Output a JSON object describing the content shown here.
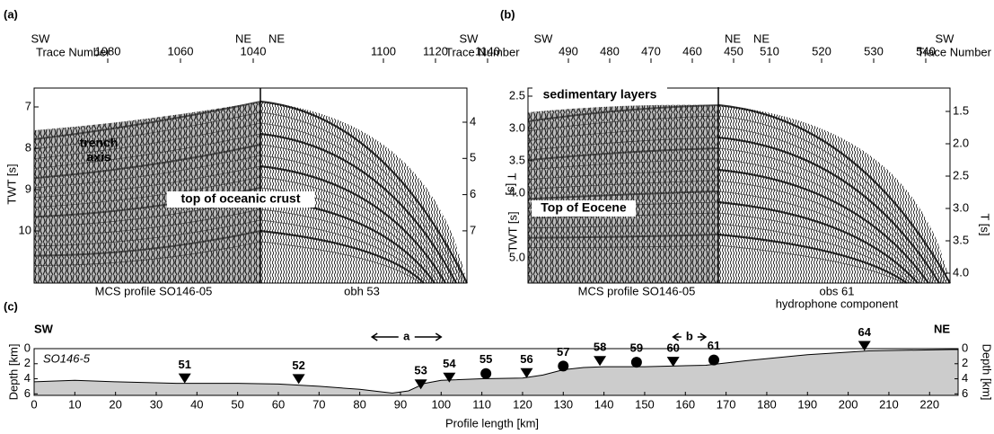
{
  "panel_a": {
    "label": "(a)",
    "top": {
      "left_dir": "SW",
      "left_axis": "Trace Number",
      "mid_left_dir": "NE",
      "mid_right_dir": "NE",
      "right_dir": "SW",
      "right_axis": "Trace Number"
    },
    "mcs_ticks": [
      1080,
      1060,
      1040
    ],
    "obs_ticks": [
      1100,
      1120,
      1140
    ],
    "y_label": "TWT [s]",
    "yticks": [
      7,
      8,
      9,
      10
    ],
    "y2_label": "T [s]",
    "y2ticks": [
      4,
      5,
      6,
      7
    ],
    "annotations": {
      "trench": "trench",
      "axis": "axis",
      "crust": "top of oceanic crust"
    },
    "captions": {
      "left": "MCS profile SO146-05",
      "right": "obh 53"
    }
  },
  "panel_b": {
    "label": "(b)",
    "top": {
      "left_dir": "SW",
      "mid_left_dir": "NE",
      "mid_right_dir": "NE",
      "right_dir": "SW",
      "right_axis": "Trace Number"
    },
    "mcs_ticks": [
      490,
      480,
      470,
      460,
      450
    ],
    "obs_ticks": [
      510,
      520,
      530,
      540
    ],
    "y_label": "TWT [s]",
    "yticks": [
      2.5,
      {
        "value": 3,
        "label": "3.0"
      },
      3.5,
      {
        "value": 4,
        "label": "4.0"
      },
      {
        "value": 5,
        "label": "5.0"
      }
    ],
    "y2_label": "T [s]",
    "y2ticks": [
      1.5,
      {
        "value": 2,
        "label": "2.0"
      },
      2.5,
      {
        "value": 3,
        "label": "3.0"
      },
      3.5,
      {
        "value": 4,
        "label": "4.0"
      }
    ],
    "annotations": {
      "layers": "sedimentary layers",
      "eocene": "Top of Eocene"
    },
    "captions": {
      "left": "MCS profile SO146-05",
      "right": "obs 61",
      "right2": "hydrophone component"
    }
  },
  "panel_c": {
    "label": "(c)",
    "left_dir": "SW",
    "right_dir": "NE",
    "profile": "SO146-5",
    "y_label": "Depth [km]",
    "y2_label": "Depth [km]",
    "x_label": "Profile length [km]",
    "xlim": [
      0,
      227
    ],
    "xticks": [
      0,
      10,
      20,
      30,
      40,
      50,
      60,
      70,
      80,
      90,
      100,
      110,
      120,
      130,
      140,
      150,
      160,
      170,
      180,
      190,
      200,
      210,
      220
    ],
    "ylim": [
      0,
      6.2
    ],
    "yticks": [
      0,
      2,
      4,
      6
    ],
    "seafloor": {
      "km": [
        0,
        10,
        20,
        35,
        50,
        60,
        70,
        80,
        88,
        92,
        96,
        100,
        110,
        120,
        125,
        130,
        135,
        140,
        150,
        165,
        175,
        190,
        205,
        227
      ],
      "depth": [
        4.4,
        4.2,
        4.4,
        4.6,
        4.6,
        4.7,
        5.0,
        5.4,
        5.9,
        5.6,
        4.6,
        4.2,
        4.0,
        3.9,
        3.5,
        2.8,
        2.5,
        2.4,
        2.4,
        2.2,
        1.6,
        0.8,
        0.3,
        0.1
      ]
    },
    "stations": [
      {
        "name": 51,
        "km": 37,
        "depth": 4.6,
        "marker": "triangle"
      },
      {
        "name": 52,
        "km": 65,
        "depth": 4.7,
        "marker": "triangle"
      },
      {
        "name": 53,
        "km": 95,
        "depth": 5.4,
        "marker": "triangle"
      },
      {
        "name": 54,
        "km": 102,
        "depth": 4.5,
        "marker": "triangle"
      },
      {
        "name": 55,
        "km": 111,
        "depth": 3.9,
        "marker": "circle"
      },
      {
        "name": 56,
        "km": 121,
        "depth": 3.9,
        "marker": "triangle"
      },
      {
        "name": 57,
        "km": 130,
        "depth": 2.9,
        "marker": "circle"
      },
      {
        "name": 58,
        "km": 139,
        "depth": 2.3,
        "marker": "triangle"
      },
      {
        "name": 59,
        "km": 148,
        "depth": 2.4,
        "marker": "circle"
      },
      {
        "name": 60,
        "km": 157,
        "depth": 2.4,
        "marker": "triangle"
      },
      {
        "name": 61,
        "km": 167,
        "depth": 2.1,
        "marker": "circle"
      },
      {
        "name": 64,
        "km": 204,
        "depth": 0.3,
        "marker": "triangle"
      }
    ],
    "windows": [
      {
        "label": "a",
        "range": [
          83,
          100
        ]
      },
      {
        "label": "b",
        "range": [
          157,
          165
        ]
      }
    ]
  }
}
